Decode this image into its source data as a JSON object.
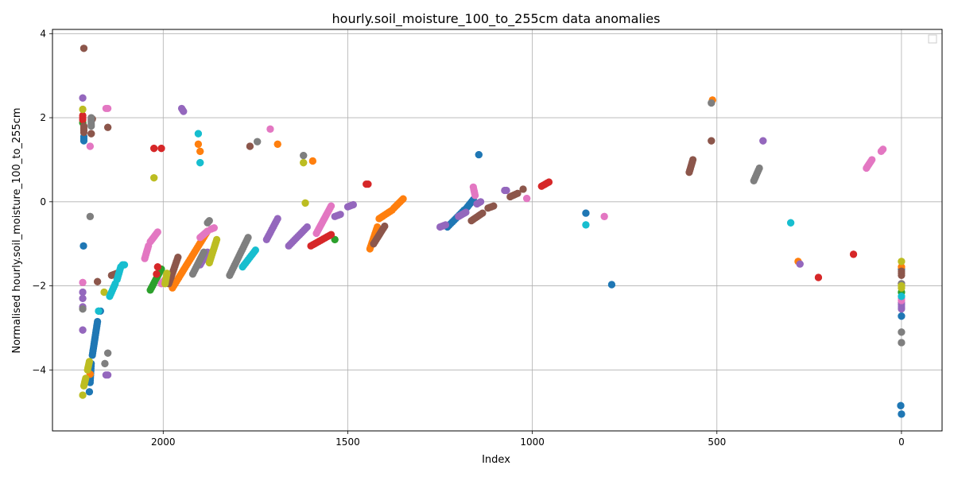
{
  "chart_data": {
    "type": "scatter",
    "title": "hourly.soil_moisture_100_to_255cm data anomalies",
    "xlabel": "Index",
    "ylabel": "Normalised hourly.soil_moisture_100_to_255cm",
    "xlim": [
      2300,
      -110
    ],
    "ylim": [
      -5.45,
      4.1
    ],
    "x_inverted": true,
    "x_ticks": [
      2000,
      1500,
      1000,
      500,
      0
    ],
    "y_ticks": [
      -4,
      -2,
      0,
      2,
      4
    ],
    "grid": true,
    "legend": "top-right (empty)",
    "palette": [
      "#1f77b4",
      "#ff7f0e",
      "#2ca02c",
      "#d62728",
      "#9467bd",
      "#8c564b",
      "#e377c2",
      "#7f7f7f",
      "#bcbd22",
      "#17becf"
    ],
    "series": [
      {
        "color": "#1f77b4",
        "runs": [
          [
            2216,
            -1.05,
            2216,
            -1.05
          ],
          [
            2215,
            1.45,
            2215,
            1.55
          ],
          [
            2200,
            -4.52,
            2200,
            -4.52
          ],
          [
            2198,
            -4.3,
            2195,
            -3.85
          ],
          [
            2192,
            -3.65,
            2178,
            -2.85
          ],
          [
            2175,
            -2.6,
            2170,
            -2.6
          ],
          [
            1230,
            -0.6,
            1185,
            -0.2
          ],
          [
            1183,
            -0.2,
            1160,
            0.05
          ],
          [
            1145,
            1.12,
            1145,
            1.12
          ],
          [
            855,
            -0.27,
            855,
            -0.27
          ],
          [
            785,
            -1.97,
            785,
            -1.97
          ],
          [
            2,
            -4.85,
            2,
            -4.85
          ],
          [
            0,
            -5.05,
            0,
            -5.05
          ],
          [
            0,
            -2.72,
            0,
            -2.72
          ],
          [
            0,
            -1.6,
            0,
            -1.6
          ]
        ]
      },
      {
        "color": "#ff7f0e",
        "runs": [
          [
            2198,
            -4.1,
            2198,
            -4.1
          ],
          [
            1975,
            -2.05,
            1880,
            -0.7
          ],
          [
            1905,
            1.37,
            1905,
            1.37
          ],
          [
            1900,
            1.2,
            1900,
            1.2
          ],
          [
            1690,
            1.37,
            1690,
            1.37
          ],
          [
            1595,
            0.97,
            1595,
            0.97
          ],
          [
            1440,
            -1.12,
            1420,
            -0.6
          ],
          [
            1415,
            -0.4,
            1380,
            -0.2
          ],
          [
            1375,
            -0.15,
            1350,
            0.07
          ],
          [
            512,
            2.42,
            512,
            2.42
          ],
          [
            280,
            -1.42,
            280,
            -1.42
          ],
          [
            0,
            -1.55,
            0,
            -1.55
          ]
        ]
      },
      {
        "color": "#2ca02c",
        "runs": [
          [
            2218,
            1.88,
            2218,
            1.88
          ],
          [
            2035,
            -2.1,
            2005,
            -1.6
          ],
          [
            1535,
            -0.9,
            1535,
            -0.9
          ],
          [
            0,
            -2.15,
            0,
            -2.15
          ]
        ]
      },
      {
        "color": "#d62728",
        "runs": [
          [
            2218,
            1.95,
            2218,
            2.05
          ],
          [
            2025,
            1.27,
            2025,
            1.27
          ],
          [
            2005,
            1.27,
            2005,
            1.27
          ],
          [
            2015,
            -1.55,
            2015,
            -1.55
          ],
          [
            2018,
            -1.72,
            2018,
            -1.72
          ],
          [
            1600,
            -1.05,
            1545,
            -0.78
          ],
          [
            1450,
            0.42,
            1445,
            0.42
          ],
          [
            975,
            0.37,
            955,
            0.47
          ],
          [
            225,
            -1.8,
            225,
            -1.8
          ],
          [
            130,
            -1.25,
            130,
            -1.25
          ],
          [
            0,
            -1.95,
            0,
            -1.95
          ]
        ]
      },
      {
        "color": "#9467bd",
        "runs": [
          [
            2218,
            2.47,
            2218,
            2.47
          ],
          [
            2218,
            -3.05,
            2218,
            -3.05
          ],
          [
            2218,
            -2.15,
            2218,
            -2.15
          ],
          [
            2218,
            -2.3,
            2218,
            -2.3
          ],
          [
            2218,
            -2.5,
            2218,
            -2.5
          ],
          [
            2155,
            -4.12,
            2150,
            -4.12
          ],
          [
            1950,
            2.22,
            1945,
            2.15
          ],
          [
            1900,
            -1.5,
            1880,
            -1.2
          ],
          [
            1720,
            -0.9,
            1690,
            -0.4
          ],
          [
            1660,
            -1.05,
            1610,
            -0.6
          ],
          [
            1535,
            -0.35,
            1520,
            -0.3
          ],
          [
            1500,
            -0.12,
            1485,
            -0.07
          ],
          [
            1250,
            -0.6,
            1235,
            -0.55
          ],
          [
            1200,
            -0.35,
            1180,
            -0.25
          ],
          [
            1150,
            -0.05,
            1140,
            0
          ],
          [
            1075,
            0.27,
            1070,
            0.27
          ],
          [
            375,
            1.45,
            375,
            1.45
          ],
          [
            275,
            -1.48,
            275,
            -1.48
          ],
          [
            0,
            -2.55,
            0,
            -2.4
          ]
        ]
      },
      {
        "color": "#8c564b",
        "runs": [
          [
            2215,
            3.65,
            2215,
            3.65
          ],
          [
            2215,
            1.65,
            2215,
            1.8
          ],
          [
            2192,
            1.97,
            2192,
            1.97
          ],
          [
            2195,
            1.62,
            2195,
            1.62
          ],
          [
            2178,
            -1.9,
            2178,
            -1.9
          ],
          [
            2150,
            1.77,
            2150,
            1.77
          ],
          [
            2140,
            -1.75,
            2125,
            -1.7
          ],
          [
            1985,
            -1.95,
            1960,
            -1.32
          ],
          [
            1765,
            1.32,
            1765,
            1.32
          ],
          [
            1430,
            -1.0,
            1400,
            -0.58
          ],
          [
            1165,
            -0.45,
            1135,
            -0.27
          ],
          [
            1120,
            -0.15,
            1105,
            -0.1
          ],
          [
            1060,
            0.12,
            1040,
            0.2
          ],
          [
            1025,
            0.3,
            1025,
            0.3
          ],
          [
            575,
            0.7,
            565,
            1.0
          ],
          [
            515,
            1.45,
            515,
            1.45
          ],
          [
            0,
            -1.75,
            0,
            -1.65
          ]
        ]
      },
      {
        "color": "#e377c2",
        "runs": [
          [
            2218,
            -1.92,
            2218,
            -1.92
          ],
          [
            2198,
            1.32,
            2198,
            1.32
          ],
          [
            2155,
            2.22,
            2150,
            2.22
          ],
          [
            2050,
            -1.35,
            2040,
            -1.05
          ],
          [
            2035,
            -0.95,
            2015,
            -0.72
          ],
          [
            2005,
            -1.95,
            1995,
            -1.85
          ],
          [
            1870,
            -0.65,
            1862,
            -0.62
          ],
          [
            1900,
            -0.85,
            1880,
            -0.7
          ],
          [
            1710,
            1.73,
            1710,
            1.73
          ],
          [
            1585,
            -0.75,
            1545,
            -0.1
          ],
          [
            1160,
            0.35,
            1155,
            0.15
          ],
          [
            1015,
            0.08,
            1015,
            0.08
          ],
          [
            805,
            -0.35,
            805,
            -0.35
          ],
          [
            95,
            0.8,
            80,
            1.0
          ],
          [
            55,
            1.2,
            50,
            1.25
          ],
          [
            0,
            -2.35,
            0,
            -2.3
          ]
        ]
      },
      {
        "color": "#7f7f7f",
        "runs": [
          [
            2218,
            -2.55,
            2218,
            -2.55
          ],
          [
            2198,
            -0.35,
            2198,
            -0.35
          ],
          [
            2195,
            2.0,
            2195,
            1.8
          ],
          [
            2158,
            -3.85,
            2158,
            -3.85
          ],
          [
            2150,
            -3.6,
            2150,
            -3.6
          ],
          [
            1920,
            -1.72,
            1890,
            -1.2
          ],
          [
            1880,
            -0.5,
            1875,
            -0.45
          ],
          [
            1820,
            -1.75,
            1770,
            -0.85
          ],
          [
            1745,
            1.43,
            1745,
            1.43
          ],
          [
            1620,
            1.1,
            1620,
            1.1
          ],
          [
            515,
            2.35,
            515,
            2.35
          ],
          [
            400,
            0.5,
            385,
            0.8
          ],
          [
            0,
            -3.35,
            0,
            -3.35
          ],
          [
            0,
            -3.1,
            0,
            -3.1
          ],
          [
            0,
            -1.95,
            0,
            -1.95
          ]
        ]
      },
      {
        "color": "#bcbd22",
        "runs": [
          [
            2218,
            -4.6,
            2218,
            -4.6
          ],
          [
            2215,
            -4.38,
            2210,
            -4.2
          ],
          [
            2205,
            -4.0,
            2200,
            -3.8
          ],
          [
            2218,
            2.2,
            2218,
            2.2
          ],
          [
            2160,
            -2.15,
            2160,
            -2.15
          ],
          [
            2025,
            0.57,
            2025,
            0.57
          ],
          [
            1995,
            -1.95,
            1990,
            -1.7
          ],
          [
            1875,
            -1.45,
            1855,
            -0.9
          ],
          [
            1620,
            0.93,
            1620,
            0.93
          ],
          [
            1615,
            -0.03,
            1615,
            -0.03
          ],
          [
            0,
            -1.42,
            0,
            -1.42
          ],
          [
            0,
            -2.0,
            0,
            -2.0
          ],
          [
            0,
            -2.05,
            0,
            -2.05
          ]
        ]
      },
      {
        "color": "#17becf",
        "runs": [
          [
            2175,
            -2.6,
            2175,
            -2.6
          ],
          [
            2145,
            -2.25,
            2130,
            -1.95
          ],
          [
            2125,
            -1.85,
            2115,
            -1.55
          ],
          [
            2110,
            -1.5,
            2105,
            -1.5
          ],
          [
            1905,
            1.62,
            1905,
            1.62
          ],
          [
            1900,
            0.93,
            1900,
            0.93
          ],
          [
            1785,
            -1.55,
            1750,
            -1.15
          ],
          [
            855,
            -0.55,
            855,
            -0.55
          ],
          [
            300,
            -0.5,
            300,
            -0.5
          ],
          [
            0,
            -2.25,
            0,
            -2.25
          ]
        ]
      }
    ]
  }
}
